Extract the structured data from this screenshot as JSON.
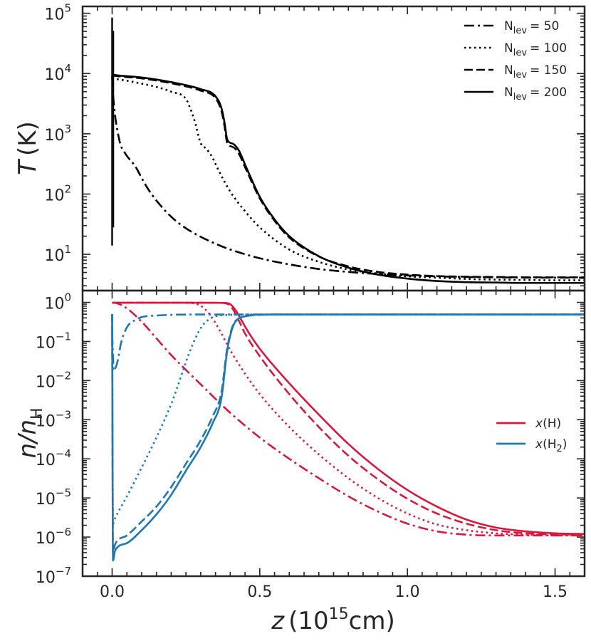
{
  "chart_data": [
    {
      "type": "line",
      "panel": "top",
      "ylabel_italic": "T",
      "ylabel_unit": "(K)",
      "yscale": "log",
      "ylim": [
        2.5,
        130000
      ],
      "xlim": [
        -0.1,
        1.6
      ],
      "yticks": [
        {
          "base": "10",
          "exp": "1",
          "value": 10
        },
        {
          "base": "10",
          "exp": "2",
          "value": 100
        },
        {
          "base": "10",
          "exp": "3",
          "value": 1000
        },
        {
          "base": "10",
          "exp": "4",
          "value": 10000
        },
        {
          "base": "10",
          "exp": "5",
          "value": 100000
        }
      ],
      "legend": {
        "placement": "top-right",
        "entries": [
          {
            "label": "N",
            "sub": "lev",
            "eq": "= 50",
            "style": "dashdot"
          },
          {
            "label": "N",
            "sub": "lev",
            "eq": "= 100",
            "style": "dotted"
          },
          {
            "label": "N",
            "sub": "lev",
            "eq": "= 150",
            "style": "dashed"
          },
          {
            "label": "N",
            "sub": "lev",
            "eq": "= 200",
            "style": "solid"
          }
        ]
      },
      "series": [
        {
          "name": "Nlev = 50",
          "style": "dashdot",
          "color": "#000000",
          "x": [
            0.0,
            0.002,
            0.005,
            0.01,
            0.02,
            0.03,
            0.035,
            0.05,
            0.08,
            0.1,
            0.12,
            0.15,
            0.2,
            0.25,
            0.3,
            0.35,
            0.4,
            0.5,
            0.6,
            0.7,
            0.8,
            0.9,
            1.0,
            1.1,
            1.2,
            1.3,
            1.4,
            1.5,
            1.6
          ],
          "y": [
            9000,
            5500,
            3500,
            2000,
            1000,
            620,
            560,
            430,
            280,
            185,
            125,
            78,
            42,
            27,
            19.5,
            15,
            12,
            8.6,
            6.8,
            5.7,
            5.1,
            4.7,
            4.45,
            4.3,
            4.2,
            4.15,
            4.1,
            4.1,
            4.1
          ]
        },
        {
          "name": "Nlev = 100",
          "style": "dotted",
          "color": "#000000",
          "x": [
            0.0,
            0.01,
            0.05,
            0.1,
            0.15,
            0.2,
            0.25,
            0.26,
            0.28,
            0.3,
            0.32,
            0.34,
            0.36,
            0.4,
            0.45,
            0.5,
            0.6,
            0.7,
            0.8,
            0.9,
            1.0,
            1.1,
            1.2,
            1.3,
            1.4,
            1.5,
            1.6
          ],
          "y": [
            8500,
            8200,
            7600,
            6800,
            6000,
            5000,
            3800,
            3000,
            1600,
            700,
            560,
            400,
            250,
            110,
            52,
            28,
            12,
            7.5,
            5.6,
            4.8,
            4.3,
            4.1,
            3.9,
            3.8,
            3.75,
            3.7,
            3.7
          ]
        },
        {
          "name": "Nlev = 150",
          "style": "dashed",
          "color": "#000000",
          "x": [
            0.0,
            0.005,
            0.02,
            0.1,
            0.2,
            0.3,
            0.35,
            0.37,
            0.38,
            0.39,
            0.41,
            0.43,
            0.45,
            0.5,
            0.55,
            0.6,
            0.7,
            0.8,
            0.9,
            1.0,
            1.1,
            1.2,
            1.3,
            1.4,
            1.5,
            1.6
          ],
          "y": [
            9200,
            9200,
            9000,
            8300,
            6900,
            5200,
            3900,
            2400,
            1400,
            700,
            600,
            460,
            280,
            85,
            36,
            19,
            9.2,
            6.3,
            5.1,
            4.6,
            4.35,
            4.25,
            4.2,
            4.15,
            4.15,
            4.15
          ]
        },
        {
          "name": "Nlev = 200",
          "style": "solid",
          "color": "#000000",
          "x": [
            0.0,
            0.005,
            0.02,
            0.1,
            0.2,
            0.3,
            0.35,
            0.37,
            0.38,
            0.39,
            0.41,
            0.43,
            0.45,
            0.5,
            0.55,
            0.6,
            0.7,
            0.8,
            0.9,
            1.0,
            1.1,
            1.2,
            1.3,
            1.4,
            1.5,
            1.6
          ],
          "y": [
            9500,
            9500,
            9300,
            8600,
            7200,
            5500,
            4200,
            2700,
            1600,
            800,
            680,
            520,
            310,
            90,
            38,
            20,
            9.3,
            6.0,
            4.6,
            3.95,
            3.6,
            3.45,
            3.4,
            3.35,
            3.35,
            3.35
          ]
        }
      ],
      "spike": {
        "x": 0.0,
        "ymin": 14,
        "ymax": 85000
      }
    },
    {
      "type": "line",
      "panel": "bottom",
      "ylabel_italic": "n/n",
      "ylabel_sub": "H",
      "yscale": "log",
      "ylim": [
        1e-07,
        2
      ],
      "xlim": [
        -0.1,
        1.6
      ],
      "xlabel_italic": "z",
      "xlabel_unit_pre": "(10",
      "xlabel_unit_exp": "15",
      "xlabel_unit_post": "cm)",
      "xticks": [
        {
          "value": 0.0,
          "label": "0.0"
        },
        {
          "value": 0.5,
          "label": "0.5"
        },
        {
          "value": 1.0,
          "label": "1.0"
        },
        {
          "value": 1.5,
          "label": "1.5"
        }
      ],
      "yticks": [
        {
          "base": "10",
          "exp": "−7",
          "value": 1e-07
        },
        {
          "base": "10",
          "exp": "−6",
          "value": 1e-06
        },
        {
          "base": "10",
          "exp": "−5",
          "value": 1e-05
        },
        {
          "base": "10",
          "exp": "−4",
          "value": 0.0001
        },
        {
          "base": "10",
          "exp": "−3",
          "value": 0.001
        },
        {
          "base": "10",
          "exp": "−2",
          "value": 0.01
        },
        {
          "base": "10",
          "exp": "−1",
          "value": 0.1
        },
        {
          "base": "10",
          "exp": "0",
          "value": 1
        }
      ],
      "legend": {
        "placement": "center-right",
        "entries": [
          {
            "label": "x",
            "rest": "(H)",
            "color": "#d6193e"
          },
          {
            "label": "x",
            "rest": "(H",
            "sub": "2",
            "tail": ")",
            "color": "#1f77b4"
          }
        ]
      },
      "series": [
        {
          "name": "x(H) Nlev=50",
          "style": "dashdot",
          "color": "#d6193e",
          "x": [
            0.0,
            0.01,
            0.02,
            0.05,
            0.1,
            0.15,
            0.2,
            0.3,
            0.4,
            0.5,
            0.6,
            0.7,
            0.8,
            0.9,
            1.0,
            1.1,
            1.2,
            1.3,
            1.4,
            1.5,
            1.6
          ],
          "y": [
            0.98,
            0.97,
            0.93,
            0.7,
            0.32,
            0.12,
            0.045,
            0.008,
            0.0015,
            0.00035,
            0.0001,
            3.2e-05,
            1.1e-05,
            4.5e-06,
            2.2e-06,
            1.4e-06,
            1.15e-06,
            1.1e-06,
            1.1e-06,
            1.1e-06,
            1.1e-06
          ]
        },
        {
          "name": "x(H) Nlev=100",
          "style": "dotted",
          "color": "#d6193e",
          "x": [
            0.0,
            0.01,
            0.1,
            0.2,
            0.25,
            0.28,
            0.3,
            0.33,
            0.36,
            0.4,
            0.45,
            0.5,
            0.6,
            0.7,
            0.8,
            0.9,
            1.0,
            1.1,
            1.2,
            1.3,
            1.4,
            1.5,
            1.6
          ],
          "y": [
            0.98,
            0.98,
            0.98,
            0.98,
            0.97,
            0.93,
            0.82,
            0.5,
            0.22,
            0.06,
            0.015,
            0.0045,
            0.00065,
            0.00013,
            3.2e-05,
            1e-05,
            4e-06,
            2.1e-06,
            1.5e-06,
            1.25e-06,
            1.15e-06,
            1.1e-06,
            1.1e-06
          ]
        },
        {
          "name": "x(H) Nlev=150",
          "style": "dashed",
          "color": "#d6193e",
          "x": [
            0.0,
            0.005,
            0.1,
            0.2,
            0.3,
            0.37,
            0.39,
            0.41,
            0.43,
            0.45,
            0.5,
            0.6,
            0.7,
            0.8,
            0.9,
            1.0,
            1.1,
            1.2,
            1.3,
            1.4,
            1.5,
            1.6
          ],
          "y": [
            0.98,
            0.98,
            0.98,
            0.98,
            0.98,
            0.97,
            0.92,
            0.65,
            0.33,
            0.16,
            0.042,
            0.0045,
            0.00065,
            0.00012,
            3e-05,
            9.5e-06,
            4e-06,
            2.2e-06,
            1.5e-06,
            1.25e-06,
            1.17e-06,
            1.15e-06
          ]
        },
        {
          "name": "x(H) Nlev=200",
          "style": "solid",
          "color": "#d6193e",
          "x": [
            0.0,
            0.005,
            0.1,
            0.2,
            0.3,
            0.38,
            0.4,
            0.42,
            0.44,
            0.46,
            0.5,
            0.6,
            0.7,
            0.8,
            0.9,
            1.0,
            1.1,
            1.2,
            1.3,
            1.4,
            1.5,
            1.6
          ],
          "y": [
            0.98,
            0.98,
            0.98,
            0.98,
            0.98,
            0.97,
            0.9,
            0.6,
            0.33,
            0.18,
            0.065,
            0.0085,
            0.00135,
            0.00024,
            5.5e-05,
            1.6e-05,
            6e-06,
            2.8e-06,
            1.75e-06,
            1.4e-06,
            1.25e-06,
            1.2e-06
          ]
        },
        {
          "name": "x(H2) Nlev=50",
          "style": "dashdot",
          "color": "#1f77b4",
          "x": [
            0.0,
            0.003,
            0.005,
            0.01,
            0.015,
            0.02,
            0.03,
            0.05,
            0.08,
            0.1,
            0.15,
            0.2,
            0.3,
            0.5,
            1.0,
            1.6
          ],
          "y": [
            0.15,
            0.05,
            0.018,
            0.02,
            0.025,
            0.035,
            0.09,
            0.23,
            0.36,
            0.42,
            0.46,
            0.48,
            0.49,
            0.49,
            0.49,
            0.49
          ]
        },
        {
          "name": "x(H2) Nlev=100",
          "style": "dotted",
          "color": "#1f77b4",
          "x": [
            0.0,
            0.003,
            0.01,
            0.05,
            0.1,
            0.15,
            0.2,
            0.22,
            0.25,
            0.27,
            0.3,
            0.32,
            0.35,
            0.4,
            0.5,
            1.0,
            1.6
          ],
          "y": [
            0.5,
            2.2e-06,
            3e-06,
            1.1e-05,
            6e-05,
            0.00035,
            0.0025,
            0.0065,
            0.03,
            0.075,
            0.22,
            0.33,
            0.44,
            0.48,
            0.49,
            0.49,
            0.49
          ]
        },
        {
          "name": "x(H2) Nlev=150",
          "style": "dashed",
          "color": "#1f77b4",
          "x": [
            0.0,
            0.003,
            0.01,
            0.05,
            0.1,
            0.15,
            0.2,
            0.25,
            0.3,
            0.34,
            0.37,
            0.39,
            0.41,
            0.43,
            0.45,
            0.5,
            0.6,
            1.0,
            1.6
          ],
          "y": [
            0.5,
            4e-07,
            6.5e-07,
            1.1e-06,
            2.5e-06,
            6e-06,
            1.9e-05,
            7.5e-05,
            0.0003,
            0.0012,
            0.005,
            0.07,
            0.27,
            0.39,
            0.44,
            0.48,
            0.49,
            0.49,
            0.49
          ]
        },
        {
          "name": "x(H2) Nlev=200",
          "style": "solid",
          "color": "#1f77b4",
          "x": [
            0.0,
            0.003,
            0.01,
            0.05,
            0.1,
            0.15,
            0.2,
            0.25,
            0.3,
            0.34,
            0.37,
            0.39,
            0.41,
            0.43,
            0.45,
            0.48,
            0.55,
            1.0,
            1.6
          ],
          "y": [
            0.5,
            2.5e-07,
            4.5e-07,
            7e-07,
            1.5e-06,
            3.8e-06,
            1.2e-05,
            5e-05,
            0.0002,
            0.0008,
            0.0035,
            0.06,
            0.25,
            0.39,
            0.44,
            0.48,
            0.49,
            0.49,
            0.49
          ]
        }
      ]
    }
  ]
}
